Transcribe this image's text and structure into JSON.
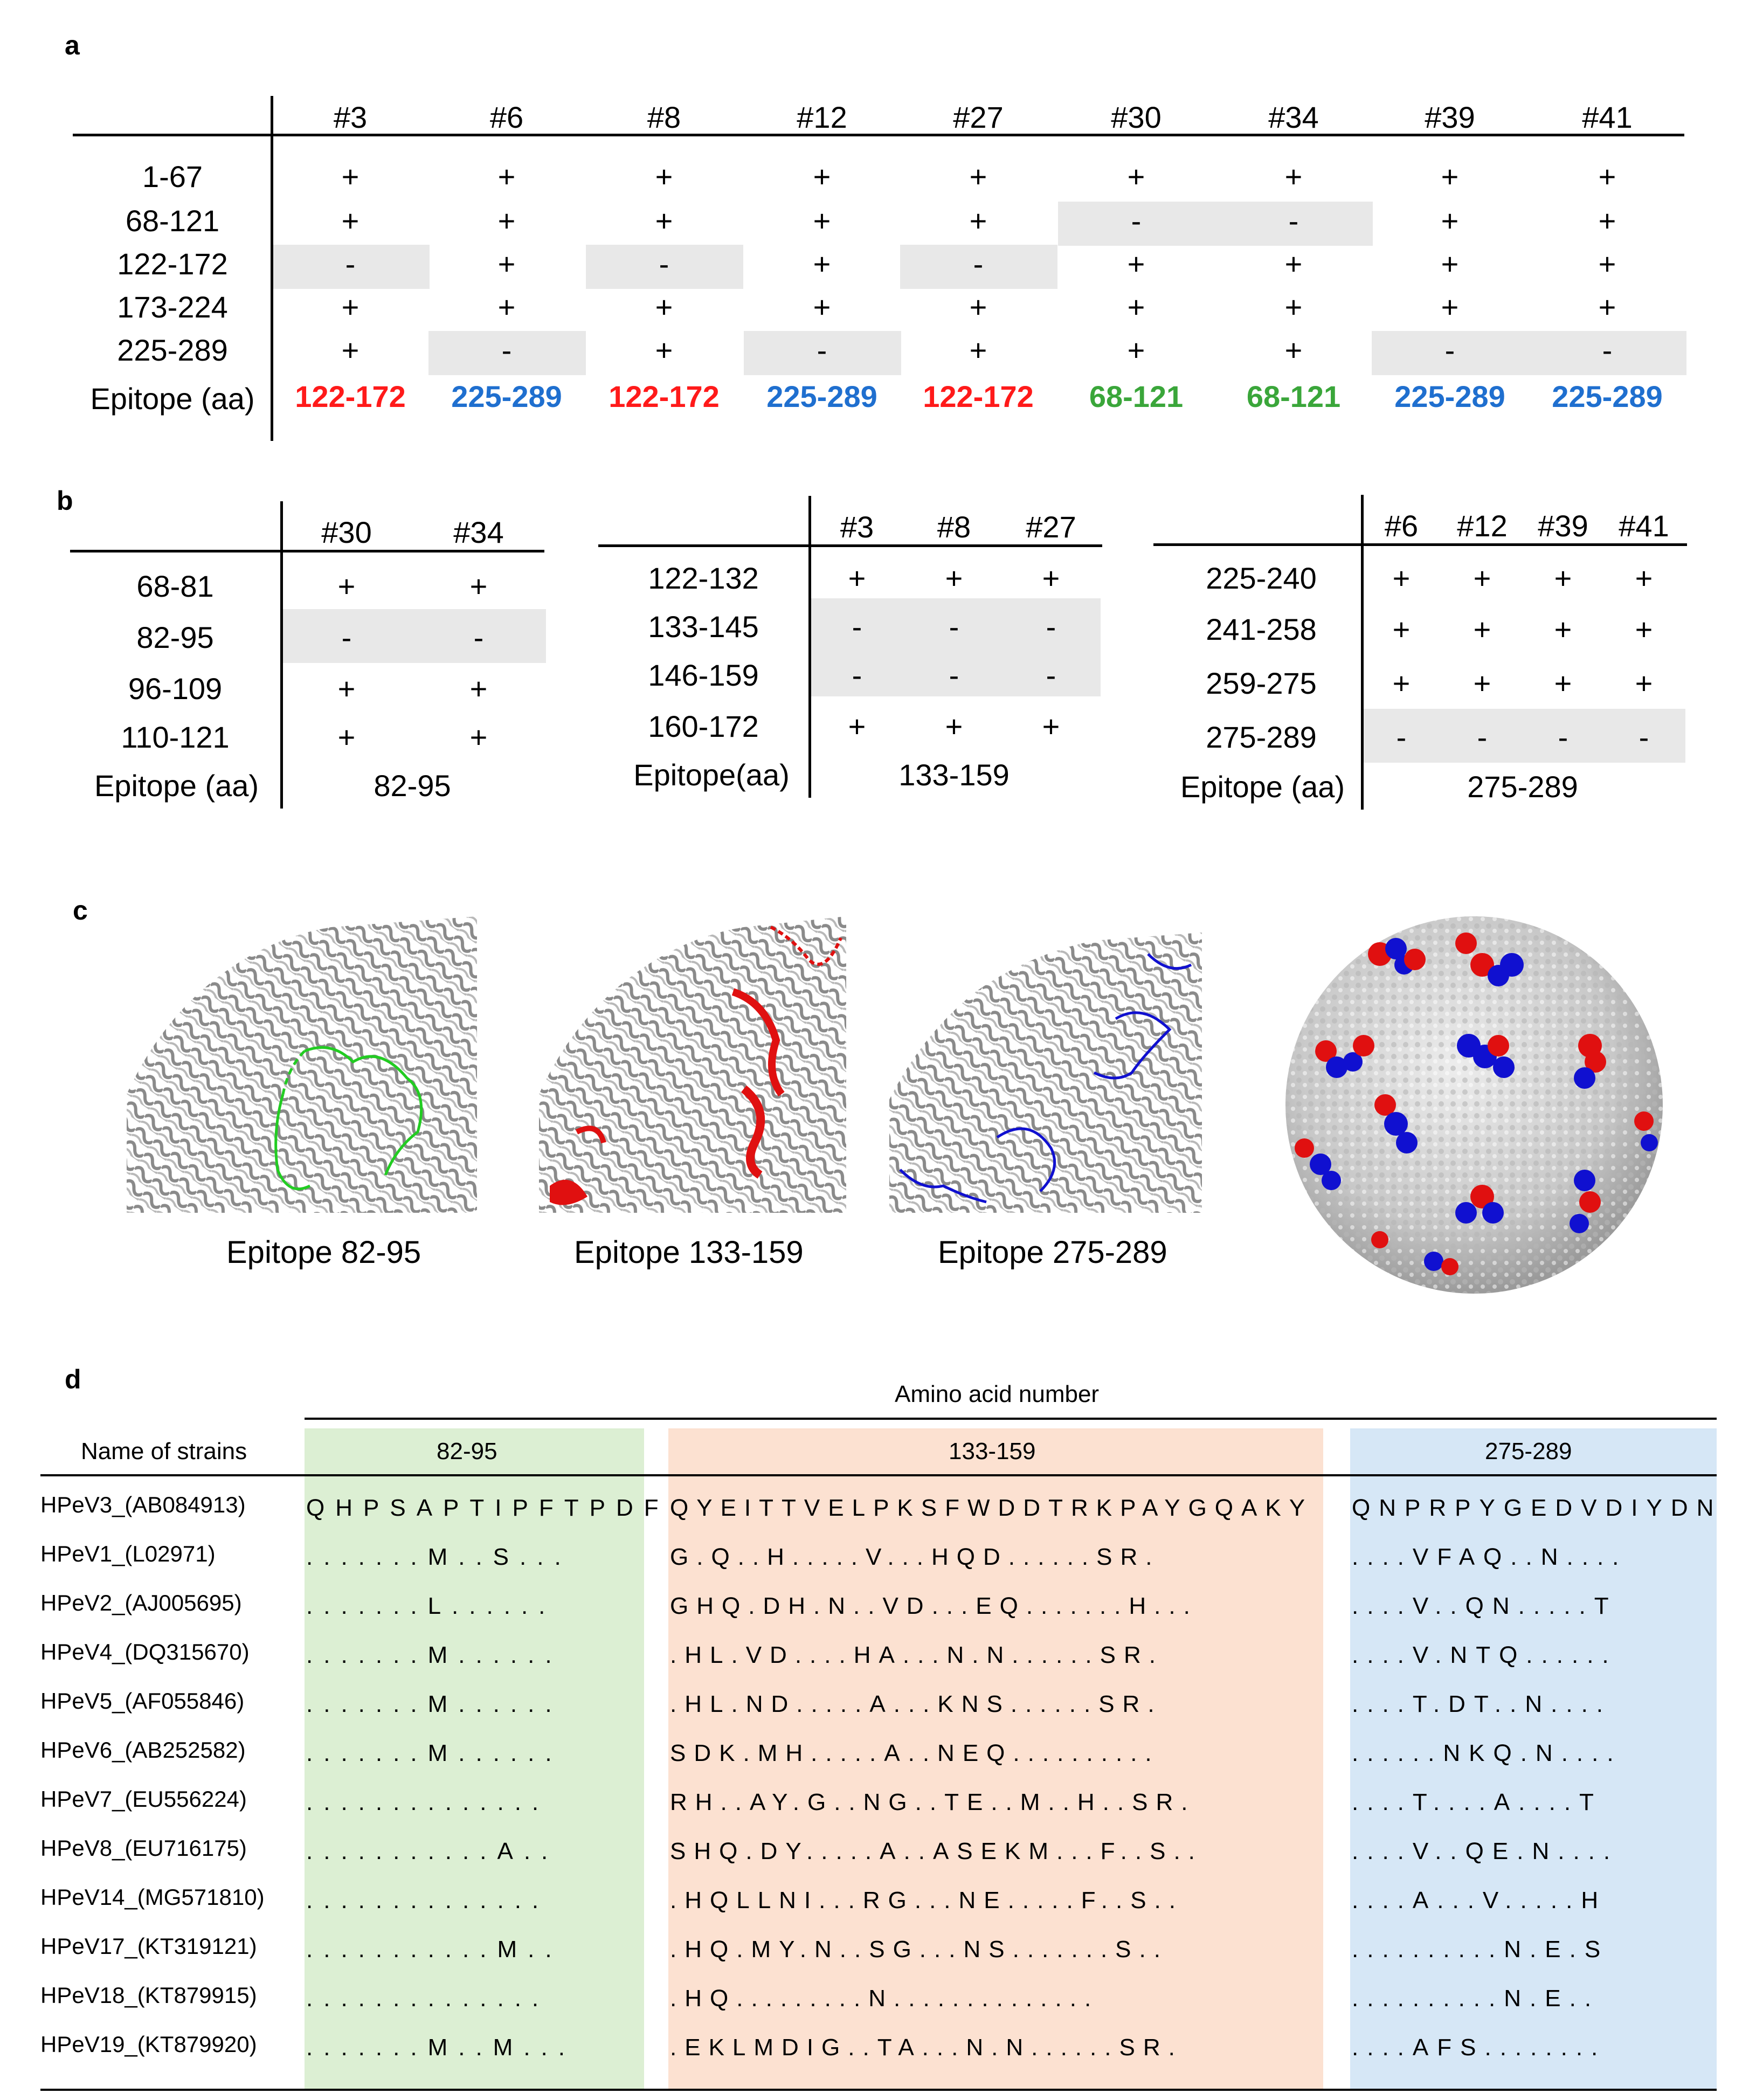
{
  "panel_a": {
    "label": "a",
    "columns": [
      "#3",
      "#6",
      "#8",
      "#12",
      "#27",
      "#30",
      "#34",
      "#39",
      "#41"
    ],
    "rows": [
      {
        "label": "1-67",
        "values": [
          "+",
          "+",
          "+",
          "+",
          "+",
          "+",
          "+",
          "+",
          "+"
        ]
      },
      {
        "label": "68-121",
        "values": [
          "+",
          "+",
          "+",
          "+",
          "+",
          "-",
          "-",
          "+",
          "+"
        ]
      },
      {
        "label": "122-172",
        "values": [
          "-",
          "+",
          "-",
          "+",
          "-",
          "+",
          "+",
          "+",
          "+"
        ]
      },
      {
        "label": "173-224",
        "values": [
          "+",
          "+",
          "+",
          "+",
          "+",
          "+",
          "+",
          "+",
          "+"
        ]
      },
      {
        "label": "225-289",
        "values": [
          "+",
          "-",
          "+",
          "-",
          "+",
          "+",
          "+",
          "-",
          "-"
        ]
      }
    ],
    "epitope_label": "Epitope (aa)",
    "epitopes": [
      "122-172",
      "225-289",
      "122-172",
      "225-289",
      "122-172",
      "68-121",
      "68-121",
      "225-289",
      "225-289"
    ],
    "epitope_colors": [
      "#ff1a1a",
      "#1f6fcf",
      "#ff1a1a",
      "#1f6fcf",
      "#ff1a1a",
      "#3aa63a",
      "#3aa63a",
      "#1f6fcf",
      "#1f6fcf"
    ]
  },
  "panel_b": {
    "label": "b",
    "tables": [
      {
        "columns": [
          "#30",
          "#34"
        ],
        "rows": [
          {
            "label": "68-81",
            "values": [
              "+",
              "+"
            ]
          },
          {
            "label": "82-95",
            "values": [
              "-",
              "-"
            ]
          },
          {
            "label": "96-109",
            "values": [
              "+",
              "+"
            ]
          },
          {
            "label": "110-121",
            "values": [
              "+",
              "+"
            ]
          }
        ],
        "epitope_label": "Epitope (aa)",
        "epitope": "82-95"
      },
      {
        "columns": [
          "#3",
          "#8",
          "#27"
        ],
        "rows": [
          {
            "label": "122-132",
            "values": [
              "+",
              "+",
              "+"
            ]
          },
          {
            "label": "133-145",
            "values": [
              "-",
              "-",
              "-"
            ]
          },
          {
            "label": "146-159",
            "values": [
              "-",
              "-",
              "-"
            ]
          },
          {
            "label": "160-172",
            "values": [
              "+",
              "+",
              "+"
            ]
          }
        ],
        "epitope_label": "Epitope(aa)",
        "epitope": "133-159"
      },
      {
        "columns": [
          "#6",
          "#12",
          "#39",
          "#41"
        ],
        "rows": [
          {
            "label": "225-240",
            "values": [
              "+",
              "+",
              "+",
              "+"
            ]
          },
          {
            "label": "241-258",
            "values": [
              "+",
              "+",
              "+",
              "+"
            ]
          },
          {
            "label": "259-275",
            "values": [
              "+",
              "+",
              "+",
              "+"
            ]
          },
          {
            "label": "275-289",
            "values": [
              "-",
              "-",
              "-",
              "-"
            ]
          }
        ],
        "epitope_label": "Epitope (aa)",
        "epitope": "275-289"
      }
    ]
  },
  "panel_c": {
    "label": "c",
    "captions": [
      "Epitope 82-95",
      "Epitope 133-159",
      "Epitope 275-289"
    ],
    "colors": {
      "green": "#22cc22",
      "red": "#e01010",
      "blue": "#1010d0"
    }
  },
  "panel_d": {
    "label": "d",
    "title": "Amino acid number",
    "name_header": "Name of strains",
    "regions": [
      "82-95",
      "133-159",
      "275-289"
    ],
    "region_colors": [
      "#dcefd3",
      "#fce1d1",
      "#d6e7f6"
    ],
    "strains": [
      {
        "name": "HPeV3_(AB084913)",
        "s1": "QHPSAPTIPFTPDF",
        "s2": "QYEITTVELPKSFWDDTRKPAYGQAKY",
        "s3": "QNPRPYGEDVDIYDN"
      },
      {
        "name": "HPeV1_(L02971)",
        "s1": ".......M..S...",
        "s2": "G.Q..H.....V...HQD......SR.",
        "s3": "....VFAQ..N...."
      },
      {
        "name": "HPeV2_(AJ005695)",
        "s1": ".......L......",
        "s2": "GHQ.DH.N..VD...EQ.......H...",
        "s3": "....V..QN.....T"
      },
      {
        "name": "HPeV4_(DQ315670)",
        "s1": ".......M......",
        "s2": ".HL.VD....HA...N.N......SR.",
        "s3": "....V.NTQ......"
      },
      {
        "name": "HPeV5_(AF055846)",
        "s1": ".......M......",
        "s2": ".HL.ND.....A...KNS......SR.",
        "s3": "....T.DT..N...."
      },
      {
        "name": "HPeV6_(AB252582)",
        "s1": ".......M......",
        "s2": "SDK.MH.....A..NEQ..........",
        "s3": "......NKQ.N...."
      },
      {
        "name": "HPeV7_(EU556224)",
        "s1": "..............",
        "s2": "RH..AY.G..NG..TE..M..H..SR.",
        "s3": "....T....A....T"
      },
      {
        "name": "HPeV8_(EU716175)",
        "s1": "...........A..",
        "s2": "SHQ.DY.....A..ASEKM...F..S..",
        "s3": "....V..QE.N...."
      },
      {
        "name": "HPeV14_(MG571810)",
        "s1": "..............",
        "s2": ".HQLLNI...RG...NE.....F..S..",
        "s3": "....A...V.....H"
      },
      {
        "name": "HPeV17_(KT319121)",
        "s1": "...........M..",
        "s2": ".HQ.MY.N..SG...NS.......S..",
        "s3": "..........N.E.S"
      },
      {
        "name": "HPeV18_(KT879915)",
        "s1": "..............",
        "s2": ".HQ.........N..............",
        "s3": "..........N.E.."
      },
      {
        "name": "HPeV19_(KT879920)",
        "s1": ".......M..M...",
        "s2": ".EKLMDIG..TA...N.N......SR.",
        "s3": "....AFS........"
      }
    ]
  }
}
